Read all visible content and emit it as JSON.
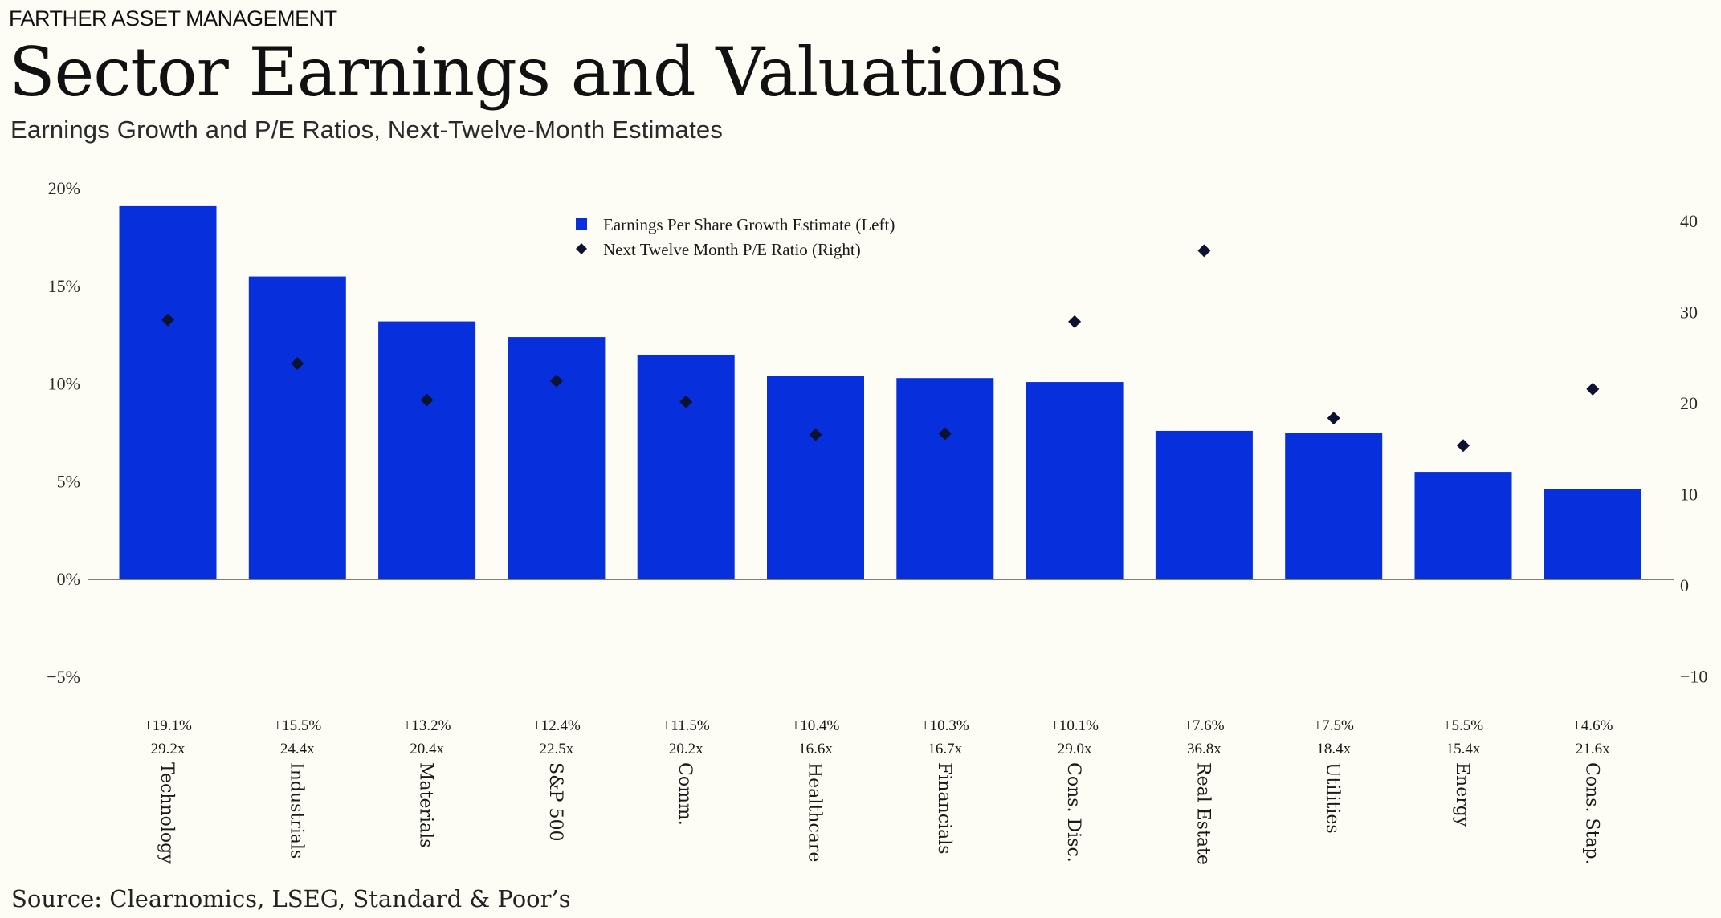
{
  "header": {
    "brand": "FARTHER ASSET MANAGEMENT",
    "title": "Sector Earnings and Valuations",
    "subtitle": "Earnings Growth and P/E Ratios, Next-Twelve-Month  Estimates"
  },
  "footer": {
    "source": "Source: Clearnomics, LSEG, Standard & Poor’s"
  },
  "colors": {
    "bar": "#072fdc",
    "marker": "#0c1230",
    "axis": "#555555",
    "background": "#fdfdf6"
  },
  "chart_data": {
    "type": "bar",
    "title": "Sector Earnings and Valuations",
    "subtitle": "Earnings Growth and P/E Ratios, Next-Twelve-Month  Estimates",
    "categories": [
      "Technology",
      "Industrials",
      "Materials",
      "S&P 500",
      "Comm.",
      "Healthcare",
      "Financials",
      "Cons. Disc.",
      "Real Estate",
      "Utilities",
      "Energy",
      "Cons. Stap."
    ],
    "series": [
      {
        "name": "Earnings Per Share Growth Estimate (Left)",
        "type": "bar",
        "axis": "left",
        "values": [
          19.1,
          15.5,
          13.2,
          12.4,
          11.5,
          10.4,
          10.3,
          10.1,
          7.6,
          7.5,
          5.5,
          4.6
        ]
      },
      {
        "name": "Next Twelve Month P/E Ratio (Right)",
        "type": "scatter",
        "axis": "right",
        "values": [
          29.2,
          24.4,
          20.4,
          22.5,
          20.2,
          16.6,
          16.7,
          29.0,
          36.8,
          18.4,
          15.4,
          21.6
        ]
      }
    ],
    "data_labels": {
      "growth": [
        "+19.1%",
        "+15.5%",
        "+13.2%",
        "+12.4%",
        "+11.5%",
        "+10.4%",
        "+10.3%",
        "+10.1%",
        "+7.6%",
        "+7.5%",
        "+5.5%",
        "+4.6%"
      ],
      "pe": [
        "29.2x",
        "24.4x",
        "20.4x",
        "22.5x",
        "20.2x",
        "16.6x",
        "16.7x",
        "29.0x",
        "36.8x",
        "18.4x",
        "15.4x",
        "21.6x"
      ]
    },
    "y_left": {
      "ylim": [
        -5,
        20
      ],
      "ticks": [
        20,
        15,
        10,
        5,
        0,
        -5
      ],
      "tick_labels": [
        "20%",
        "15%",
        "10%",
        "5%",
        "0%",
        "−5%"
      ]
    },
    "y_right": {
      "ylim": [
        -10,
        40
      ],
      "ticks": [
        40,
        30,
        20,
        10,
        0,
        -10
      ],
      "tick_labels": [
        "40",
        "30",
        "20",
        "10",
        "0",
        "−10"
      ]
    },
    "legend": {
      "placement": "top-center",
      "items": [
        "Earnings Per Share Growth Estimate (Left)",
        "Next Twelve Month P/E Ratio (Right)"
      ]
    },
    "grid": false
  }
}
